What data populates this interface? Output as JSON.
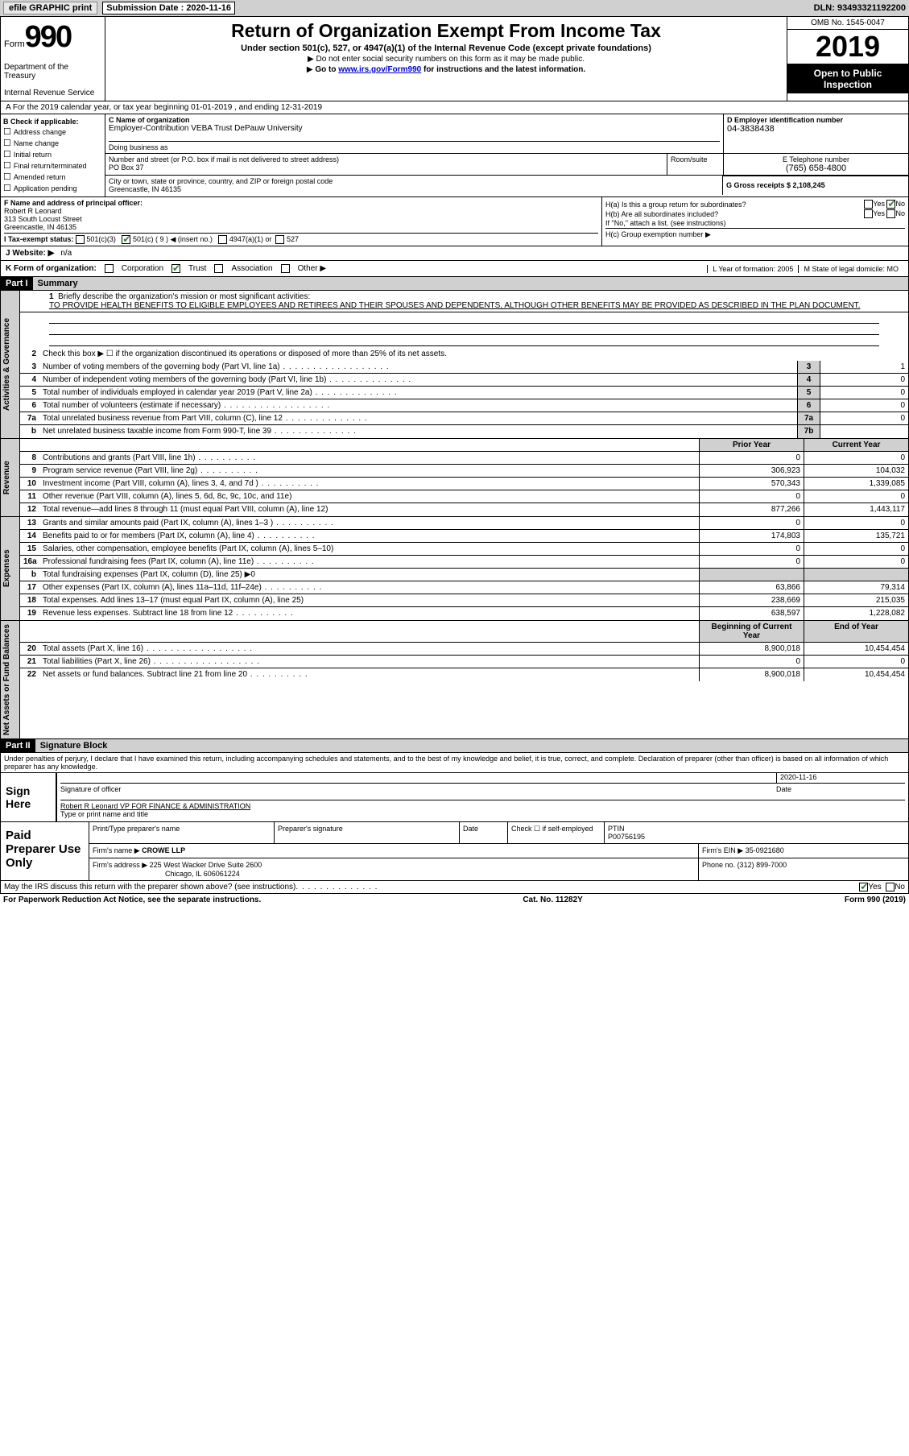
{
  "header": {
    "efile": "efile GRAPHIC print",
    "sub_label": "Submission Date : 2020-11-16",
    "dln": "DLN: 93493321192200"
  },
  "top": {
    "form_label": "Form",
    "form_no": "990",
    "dept1": "Department of the Treasury",
    "dept2": "Internal Revenue Service",
    "title": "Return of Organization Exempt From Income Tax",
    "sub1": "Under section 501(c), 527, or 4947(a)(1) of the Internal Revenue Code (except private foundations)",
    "sub2": "Do not enter social security numbers on this form as it may be made public.",
    "sub3_pre": "Go to ",
    "sub3_link": "www.irs.gov/Form990",
    "sub3_post": " for instructions and the latest information.",
    "omb": "OMB No. 1545-0047",
    "year": "2019",
    "open": "Open to Public Inspection"
  },
  "lineA": "A  For the 2019 calendar year, or tax year beginning 01-01-2019    , and ending 12-31-2019",
  "B": {
    "label": "B Check if applicable:",
    "items": [
      "Address change",
      "Name change",
      "Initial return",
      "Final return/terminated",
      "Amended return",
      "Application pending"
    ]
  },
  "C": {
    "name_label": "C Name of organization",
    "name": "Employer-Contribution VEBA Trust DePauw University",
    "dba_label": "Doing business as",
    "addr_label": "Number and street (or P.O. box if mail is not delivered to street address)",
    "addr": "PO Box 37",
    "room_label": "Room/suite",
    "city_label": "City or town, state or province, country, and ZIP or foreign postal code",
    "city": "Greencastle, IN  46135"
  },
  "D": {
    "label": "D Employer identification number",
    "val": "04-3838438"
  },
  "E": {
    "label": "E Telephone number",
    "val": "(765) 658-4800"
  },
  "G": {
    "label": "G Gross receipts $ 2,108,245"
  },
  "F": {
    "label": "F  Name and address of principal officer:",
    "name": "Robert R Leonard",
    "addr1": "313 South Locust Street",
    "addr2": "Greencastle, IN  46135"
  },
  "H": {
    "a": "H(a)  Is this a group return for subordinates?",
    "b": "H(b)  Are all subordinates included?",
    "b2": "If \"No,\" attach a list. (see instructions)",
    "c": "H(c)  Group exemption number ▶",
    "yes": "Yes",
    "no": "No"
  },
  "I": {
    "label": "I  Tax-exempt status:",
    "c3": "501(c)(3)",
    "c": "501(c) ( 9 ) ◀ (insert no.)",
    "a1": "4947(a)(1) or",
    "s527": "527"
  },
  "J": {
    "label": "J  Website: ▶",
    "val": "n/a"
  },
  "K": {
    "label": "K Form of organization:",
    "corp": "Corporation",
    "trust": "Trust",
    "assoc": "Association",
    "other": "Other ▶"
  },
  "L": {
    "label": "L Year of formation: 2005"
  },
  "M": {
    "label": "M State of legal domicile: MO"
  },
  "partI": {
    "num": "Part I",
    "title": "Summary"
  },
  "q1": {
    "num": "1",
    "label": "Briefly describe the organization's mission or most significant activities:",
    "text": "TO PROVIDE HEALTH BENEFITS TO ELIGIBLE EMPLOYEES AND RETIREES AND THEIR SPOUSES AND DEPENDENTS, ALTHOUGH OTHER BENEFITS MAY BE PROVIDED AS DESCRIBED IN THE PLAN DOCUMENT."
  },
  "q2": {
    "num": "2",
    "text": "Check this box ▶ ☐  if the organization discontinued its operations or disposed of more than 25% of its net assets."
  },
  "rows_ag": [
    {
      "n": "3",
      "t": "Number of voting members of the governing body (Part VI, line 1a)",
      "box": "3",
      "v": "1",
      "d": "dots"
    },
    {
      "n": "4",
      "t": "Number of independent voting members of the governing body (Part VI, line 1b)",
      "box": "4",
      "v": "0",
      "d": "dots-m"
    },
    {
      "n": "5",
      "t": "Total number of individuals employed in calendar year 2019 (Part V, line 2a)",
      "box": "5",
      "v": "0",
      "d": "dots-m"
    },
    {
      "n": "6",
      "t": "Total number of volunteers (estimate if necessary)",
      "box": "6",
      "v": "0",
      "d": "dots"
    },
    {
      "n": "7a",
      "t": "Total unrelated business revenue from Part VIII, column (C), line 12",
      "box": "7a",
      "v": "0",
      "d": "dots-m"
    },
    {
      "n": "b",
      "t": "Net unrelated business taxable income from Form 990-T, line 39",
      "box": "7b",
      "v": "",
      "d": "dots-m"
    }
  ],
  "pycy_hdr": {
    "py": "Prior Year",
    "cy": "Current Year"
  },
  "rows_rev": [
    {
      "n": "8",
      "t": "Contributions and grants (Part VIII, line 1h)",
      "py": "0",
      "cy": "0",
      "d": "dots-s"
    },
    {
      "n": "9",
      "t": "Program service revenue (Part VIII, line 2g)",
      "py": "306,923",
      "cy": "104,032",
      "d": "dots-s"
    },
    {
      "n": "10",
      "t": "Investment income (Part VIII, column (A), lines 3, 4, and 7d )",
      "py": "570,343",
      "cy": "1,339,085",
      "d": "dots-s"
    },
    {
      "n": "11",
      "t": "Other revenue (Part VIII, column (A), lines 5, 6d, 8c, 9c, 10c, and 11e)",
      "py": "0",
      "cy": "0",
      "d": ""
    },
    {
      "n": "12",
      "t": "Total revenue—add lines 8 through 11 (must equal Part VIII, column (A), line 12)",
      "py": "877,266",
      "cy": "1,443,117",
      "d": ""
    }
  ],
  "rows_exp": [
    {
      "n": "13",
      "t": "Grants and similar amounts paid (Part IX, column (A), lines 1–3 )",
      "py": "0",
      "cy": "0",
      "d": "dots-s"
    },
    {
      "n": "14",
      "t": "Benefits paid to or for members (Part IX, column (A), line 4)",
      "py": "174,803",
      "cy": "135,721",
      "d": "dots-s"
    },
    {
      "n": "15",
      "t": "Salaries, other compensation, employee benefits (Part IX, column (A), lines 5–10)",
      "py": "0",
      "cy": "0",
      "d": ""
    },
    {
      "n": "16a",
      "t": "Professional fundraising fees (Part IX, column (A), line 11e)",
      "py": "0",
      "cy": "0",
      "d": "dots-s"
    },
    {
      "n": "b",
      "t": "Total fundraising expenses (Part IX, column (D), line 25) ▶0",
      "py": "",
      "cy": "",
      "d": "",
      "shaded": true
    },
    {
      "n": "17",
      "t": "Other expenses (Part IX, column (A), lines 11a–11d, 11f–24e)",
      "py": "63,866",
      "cy": "79,314",
      "d": "dots-s"
    },
    {
      "n": "18",
      "t": "Total expenses. Add lines 13–17 (must equal Part IX, column (A), line 25)",
      "py": "238,669",
      "cy": "215,035",
      "d": ""
    },
    {
      "n": "19",
      "t": "Revenue less expenses. Subtract line 18 from line 12",
      "py": "638,597",
      "cy": "1,228,082",
      "d": "dots-s"
    }
  ],
  "na_hdr": {
    "py": "Beginning of Current Year",
    "cy": "End of Year"
  },
  "rows_na": [
    {
      "n": "20",
      "t": "Total assets (Part X, line 16)",
      "py": "8,900,018",
      "cy": "10,454,454",
      "d": "dots"
    },
    {
      "n": "21",
      "t": "Total liabilities (Part X, line 26)",
      "py": "0",
      "cy": "0",
      "d": "dots"
    },
    {
      "n": "22",
      "t": "Net assets or fund balances. Subtract line 21 from line 20",
      "py": "8,900,018",
      "cy": "10,454,454",
      "d": "dots-s"
    }
  ],
  "side": {
    "ag": "Activities & Governance",
    "rev": "Revenue",
    "exp": "Expenses",
    "na": "Net Assets or Fund Balances"
  },
  "partII": {
    "num": "Part II",
    "title": "Signature Block"
  },
  "sig": {
    "intro": "Under penalties of perjury, I declare that I have examined this return, including accompanying schedules and statements, and to the best of my knowledge and belief, it is true, correct, and complete. Declaration of preparer (other than officer) is based on all information of which preparer has any knowledge.",
    "here": "Sign Here",
    "sig_label": "Signature of officer",
    "date_label": "Date",
    "date": "2020-11-16",
    "name": "Robert R Leonard  VP FOR FINANCE & ADMINISTRATION",
    "name_label": "Type or print name and title"
  },
  "paid": {
    "label": "Paid Preparer Use Only",
    "h1": "Print/Type preparer's name",
    "h2": "Preparer's signature",
    "h3": "Date",
    "h4": "Check ☐ if self-employed",
    "h5": "PTIN",
    "ptin": "P00756195",
    "firm_label": "Firm's name  ▶",
    "firm": "CROWE LLP",
    "ein_label": "Firm's EIN ▶",
    "ein": "35-0921680",
    "addr_label": "Firm's address ▶",
    "addr1": "225 West Wacker Drive Suite 2600",
    "addr2": "Chicago, IL  606061224",
    "phone_label": "Phone no.",
    "phone": "(312) 899-7000"
  },
  "footer": {
    "q": "May the IRS discuss this return with the preparer shown above? (see instructions)",
    "yes": "Yes",
    "no": "No"
  },
  "last": {
    "l": "For Paperwork Reduction Act Notice, see the separate instructions.",
    "c": "Cat. No. 11282Y",
    "r": "Form 990 (2019)"
  }
}
